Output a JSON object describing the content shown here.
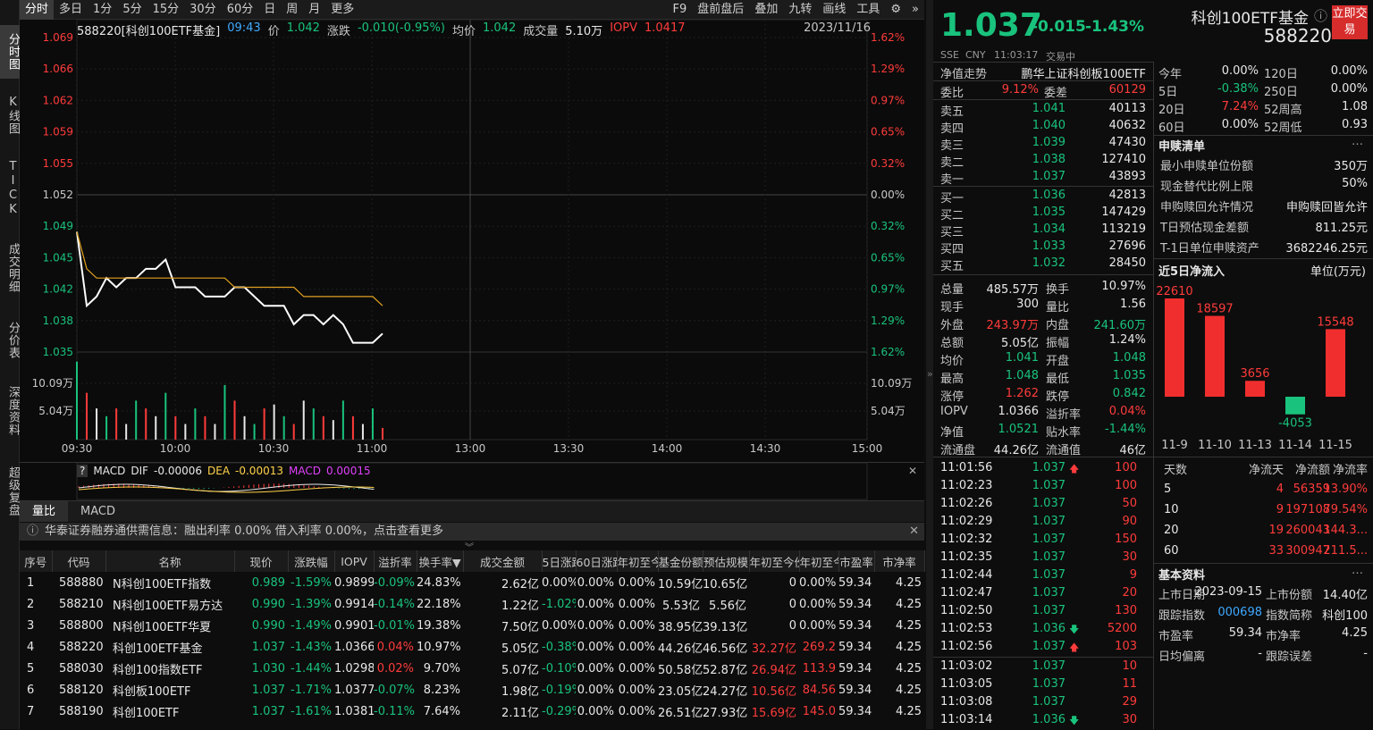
{
  "left_tabs": [
    "分时图",
    "K线图",
    "TICK",
    "成交明细",
    "分价表",
    "深度资料",
    "超级复盘"
  ],
  "top_tabs": [
    "分时",
    "多日",
    "1分",
    "5分",
    "15分",
    "30分",
    "60分",
    "日",
    "周",
    "月",
    "更多"
  ],
  "top_right": [
    "F9",
    "盘前盘后",
    "叠加",
    "九转",
    "画线",
    "工具"
  ],
  "info": {
    "code": "588220[科创100ETF基金]",
    "time": "09:43",
    "price_label": "价",
    "price": "1.042",
    "chg_label": "涨跌",
    "chg": "-0.010(-0.95%)",
    "avg_label": "均价",
    "avg": "1.042",
    "vol_label": "成交量",
    "vol": "5.10万",
    "iopv_label": "IOPV",
    "iopv": "1.0417",
    "date": "2023/11/16"
  },
  "y_left": [
    "1.069",
    "1.066",
    "1.062",
    "1.059",
    "1.055",
    "1.052",
    "1.049",
    "1.045",
    "1.042",
    "1.038",
    "1.035"
  ],
  "y_right": [
    "1.62%",
    "1.29%",
    "0.97%",
    "0.65%",
    "0.32%",
    "0.00%",
    "0.32%",
    "0.65%",
    "0.97%",
    "1.29%",
    "1.62%"
  ],
  "vol_left": [
    "10.09万",
    "5.04万"
  ],
  "vol_right": [
    "10.09万",
    "5.04万"
  ],
  "x_labels": [
    "09:30",
    "10:00",
    "10:30",
    "11:00",
    "13:00",
    "13:30",
    "14:00",
    "14:30",
    "15:00"
  ],
  "chart_data": {
    "type": "line",
    "x": [
      "09:30",
      "09:33",
      "09:36",
      "09:39",
      "09:42",
      "09:45",
      "09:48",
      "09:51",
      "09:54",
      "09:57",
      "10:00",
      "10:03",
      "10:06",
      "10:09",
      "10:12",
      "10:15",
      "10:18",
      "10:21",
      "10:24",
      "10:27",
      "10:30",
      "10:33",
      "10:36",
      "10:39",
      "10:42",
      "10:45",
      "10:48",
      "10:51",
      "10:54",
      "10:57",
      "11:00",
      "11:03"
    ],
    "series": [
      {
        "values": [
          1.048,
          1.04,
          1.041,
          1.043,
          1.042,
          1.043,
          1.043,
          1.044,
          1.044,
          1.045,
          1.042,
          1.042,
          1.042,
          1.041,
          1.041,
          1.041,
          1.042,
          1.042,
          1.041,
          1.04,
          1.04,
          1.04,
          1.038,
          1.039,
          1.039,
          1.038,
          1.039,
          1.038,
          1.036,
          1.036,
          1.036,
          1.037
        ]
      },
      {
        "values": [
          1.048,
          1.044,
          1.043,
          1.043,
          1.043,
          1.043,
          1.043,
          1.043,
          1.043,
          1.043,
          1.043,
          1.043,
          1.043,
          1.043,
          1.043,
          1.043,
          1.042,
          1.042,
          1.042,
          1.042,
          1.042,
          1.042,
          1.042,
          1.041,
          1.041,
          1.041,
          1.041,
          1.041,
          1.041,
          1.041,
          1.041,
          1.04
        ]
      }
    ],
    "volume": [
      10.0,
      6.0,
      4.0,
      3.0,
      4.0,
      2.0,
      5.0,
      4.0,
      3.0,
      6.0,
      3.0,
      2.0,
      4.0,
      3.0,
      2.0,
      7.0,
      5.0,
      3.0,
      2.0,
      4.0,
      4.5,
      3.0,
      2.0,
      5.0,
      4.0,
      3.0,
      2.5,
      5.0,
      3.0,
      2.0,
      4.0,
      1.5
    ],
    "ylim": [
      1.035,
      1.069
    ]
  },
  "macd": {
    "name": "MACD",
    "dif_label": "DIF",
    "dif": "-0.00006",
    "dea_label": "DEA",
    "dea": "-0.00013",
    "macd_label": "MACD",
    "macd": "0.00015"
  },
  "subtabs": [
    "量比",
    "MACD"
  ],
  "notice": "华泰证券融券通供需信息：融出利率 0.00%  借入利率 0.00%，点击查看更多",
  "table_headers": [
    "序号",
    "代码",
    "名称",
    "现价",
    "涨跌幅",
    "IOPV",
    "溢折率",
    "换手率▼",
    "成交金额",
    "5日涨跌",
    "60日涨跌",
    "年初至今",
    "基金份额",
    "预估规模",
    "年初至今份额",
    "年初至今",
    "市盈率",
    "市净率"
  ],
  "table_rows": [
    [
      "1",
      "588880",
      "N科创100ETF指数",
      "0.989",
      "-1.59%",
      "0.9899",
      "-0.09%",
      "24.83%",
      "2.62亿",
      "0.00%",
      "0.00%",
      "0.00%",
      "10.59亿",
      "10.65亿",
      "0",
      "0.00%",
      "59.34",
      "4.25"
    ],
    [
      "2",
      "588210",
      "N科创100ETF易方达",
      "0.990",
      "-1.39%",
      "0.9914",
      "-0.14%",
      "22.18%",
      "1.22亿",
      "-1.02%",
      "0.00%",
      "0.00%",
      "5.53亿",
      "5.56亿",
      "0",
      "0.00%",
      "59.34",
      "4.25"
    ],
    [
      "3",
      "588800",
      "N科创100ETF华夏",
      "0.990",
      "-1.49%",
      "0.9901",
      "-0.01%",
      "19.38%",
      "7.50亿",
      "0.00%",
      "0.00%",
      "0.00%",
      "38.95亿",
      "39.13亿",
      "0",
      "0.00%",
      "59.34",
      "4.25"
    ],
    [
      "4",
      "588220",
      "科创100ETF基金",
      "1.037",
      "-1.43%",
      "1.0366",
      "0.04%",
      "10.97%",
      "5.05亿",
      "-0.38%",
      "0.00%",
      "0.00%",
      "44.26亿",
      "46.56亿",
      "32.27亿",
      "269.2",
      "59.34",
      "4.25"
    ],
    [
      "5",
      "588030",
      "科创100指数ETF",
      "1.030",
      "-1.44%",
      "1.0298",
      "0.02%",
      "9.70%",
      "5.07亿",
      "-0.10%",
      "0.00%",
      "0.00%",
      "50.58亿",
      "52.87亿",
      "26.94亿",
      "113.9",
      "59.34",
      "4.25"
    ],
    [
      "6",
      "588120",
      "科创板100ETF",
      "1.037",
      "-1.71%",
      "1.0377",
      "-0.07%",
      "8.23%",
      "1.98亿",
      "-0.19%",
      "0.00%",
      "0.00%",
      "23.05亿",
      "24.27亿",
      "10.56亿",
      "84.56",
      "59.34",
      "4.25"
    ],
    [
      "7",
      "588190",
      "科创100ETF",
      "1.037",
      "-1.61%",
      "1.0381",
      "-0.11%",
      "7.64%",
      "2.11亿",
      "-0.29%",
      "0.00%",
      "0.00%",
      "26.51亿",
      "27.93亿",
      "15.69亿",
      "145.0",
      "59.34",
      "4.25"
    ]
  ],
  "quote": {
    "price": "1.037",
    "chg": "-0.015",
    "pct": "-1.43%",
    "name": "科创100ETF基金",
    "code": "588220",
    "buy_btn": "立即交易",
    "exch": "SSE",
    "ccy": "CNY",
    "time": "11:03:17",
    "status": "交易中",
    "nav_trend": "净值走势",
    "index_name": "鹏华上证科创板100ETF"
  },
  "weibi": {
    "l1": "委比",
    "v1": "9.12%",
    "l2": "委差",
    "v2": "60129"
  },
  "asks": [
    [
      "卖五",
      "1.041",
      "40113"
    ],
    [
      "卖四",
      "1.040",
      "40632"
    ],
    [
      "卖三",
      "1.039",
      "47430"
    ],
    [
      "卖二",
      "1.038",
      "127410"
    ],
    [
      "卖一",
      "1.037",
      "43893"
    ]
  ],
  "bids": [
    [
      "买一",
      "1.036",
      "42813"
    ],
    [
      "买二",
      "1.035",
      "147429"
    ],
    [
      "买三",
      "1.034",
      "113219"
    ],
    [
      "买四",
      "1.033",
      "27696"
    ],
    [
      "买五",
      "1.032",
      "28450"
    ]
  ],
  "stats": [
    [
      "总量",
      "485.57万",
      "换手",
      "10.97%"
    ],
    [
      "现手",
      "300",
      "量比",
      "1.56"
    ],
    [
      "外盘",
      "243.97万",
      "内盘",
      "241.60万"
    ],
    [
      "总额",
      "5.05亿",
      "振幅",
      "1.24%"
    ],
    [
      "均价",
      "1.041",
      "开盘",
      "1.048"
    ],
    [
      "最高",
      "1.048",
      "最低",
      "1.035"
    ],
    [
      "涨停",
      "1.262",
      "跌停",
      "0.842"
    ],
    [
      "IOPV",
      "1.0366",
      "溢折率",
      "0.04%"
    ],
    [
      "净值",
      "1.0521",
      "贴水率",
      "-1.44%"
    ],
    [
      "流通盘",
      "44.26亿",
      "流通值",
      "46亿"
    ]
  ],
  "ticks": [
    [
      "11:01:56",
      "1.037",
      "100",
      "up"
    ],
    [
      "11:02:23",
      "1.037",
      "100",
      ""
    ],
    [
      "11:02:26",
      "1.037",
      "50",
      ""
    ],
    [
      "11:02:29",
      "1.037",
      "90",
      ""
    ],
    [
      "11:02:32",
      "1.037",
      "150",
      ""
    ],
    [
      "11:02:35",
      "1.037",
      "30",
      ""
    ],
    [
      "11:02:44",
      "1.037",
      "9",
      ""
    ],
    [
      "11:02:47",
      "1.037",
      "20",
      ""
    ],
    [
      "11:02:50",
      "1.037",
      "130",
      ""
    ],
    [
      "11:02:53",
      "1.036",
      "5200",
      "down"
    ],
    [
      "11:02:56",
      "1.037",
      "103",
      "up"
    ],
    [
      "11:03:02",
      "1.037",
      "10",
      ""
    ],
    [
      "11:03:05",
      "1.037",
      "11",
      ""
    ],
    [
      "11:03:08",
      "1.037",
      "29",
      ""
    ],
    [
      "11:03:14",
      "1.036",
      "30",
      "down"
    ]
  ],
  "perf": [
    [
      "今年",
      "0.00%",
      "120日",
      "0.00%"
    ],
    [
      "5日",
      "-0.38%",
      "250日",
      "0.00%"
    ],
    [
      "20日",
      "7.24%",
      "52周高",
      "1.08"
    ],
    [
      "60日",
      "0.00%",
      "52周低",
      "0.93"
    ]
  ],
  "sg": {
    "title": "申赎清单",
    "rows": [
      [
        "最小申赎单位份额",
        "350万"
      ],
      [
        "现金替代比例上限",
        "50%"
      ],
      [
        "申购赎回允许情况",
        "申购赎回皆允许"
      ],
      [
        "T日预估现金差额",
        "811.25元"
      ],
      [
        "T-1日单位申赎资产",
        "3682246.25元"
      ]
    ]
  },
  "flow": {
    "title": "近5日净流入",
    "unit": "单位(万元)",
    "days": [
      "11-9",
      "11-10",
      "11-13",
      "11-14",
      "11-15"
    ],
    "values": [
      22610,
      18597,
      3656,
      -4053,
      15548
    ]
  },
  "flowtable": {
    "headers": [
      "天数",
      "净流天",
      "净流额",
      "净流率"
    ],
    "rows": [
      [
        "5",
        "4",
        "56359",
        "13.90%"
      ],
      [
        "10",
        "9",
        "197108",
        "79.54%"
      ],
      [
        "20",
        "19",
        "260043",
        "144.3..."
      ],
      [
        "60",
        "33",
        "300947",
        "211.5..."
      ]
    ]
  },
  "basic": {
    "title": "基本资料",
    "rows": [
      [
        "上市日期",
        "2023-09-15",
        "上市份额",
        "14.40亿"
      ],
      [
        "跟踪指数",
        "000698",
        "指数简称",
        "科创100"
      ],
      [
        "市盈率",
        "59.34",
        "市净率",
        "4.25"
      ],
      [
        "日均偏离",
        "-",
        "跟踪误差",
        "-"
      ]
    ]
  }
}
